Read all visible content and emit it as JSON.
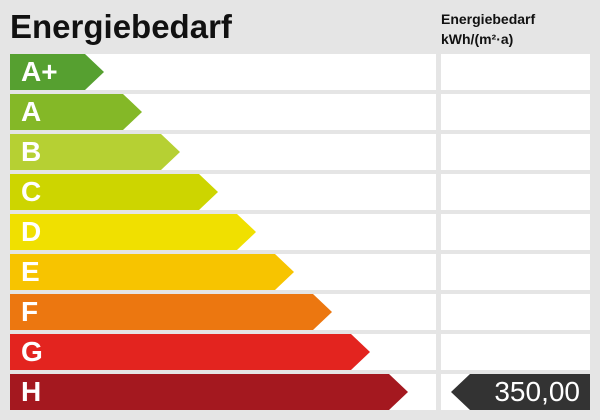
{
  "title": "Energiebedarf",
  "unit_label": [
    "Energiebedarf",
    "kWh/(m²·a)"
  ],
  "classes": [
    {
      "label": "A+",
      "color": "#56a030"
    },
    {
      "label": "A",
      "color": "#84b827"
    },
    {
      "label": "B",
      "color": "#b6d033"
    },
    {
      "label": "C",
      "color": "#cdd500"
    },
    {
      "label": "D",
      "color": "#f0e000"
    },
    {
      "label": "E",
      "color": "#f7c400"
    },
    {
      "label": "F",
      "color": "#ec7710"
    },
    {
      "label": "G",
      "color": "#e3241f"
    },
    {
      "label": "H",
      "color": "#a4181f"
    }
  ],
  "value": "350,00",
  "value_class": "H",
  "indicator_color": "#333333"
}
